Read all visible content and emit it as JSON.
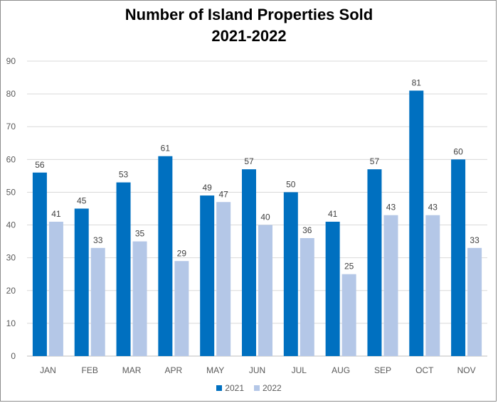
{
  "chart_data": {
    "type": "bar",
    "title": "Number of Island Properties Sold",
    "subtitle": "2021-2022",
    "categories": [
      "JAN",
      "FEB",
      "MAR",
      "APR",
      "MAY",
      "JUN",
      "JUL",
      "AUG",
      "SEP",
      "OCT",
      "NOV"
    ],
    "series": [
      {
        "name": "2021",
        "color": "#0070c0",
        "values": [
          56,
          45,
          53,
          61,
          49,
          57,
          50,
          41,
          57,
          81,
          60
        ]
      },
      {
        "name": "2022",
        "color": "#b4c7e7",
        "values": [
          41,
          33,
          35,
          29,
          47,
          40,
          36,
          25,
          43,
          43,
          33
        ]
      }
    ],
    "ylim": [
      0,
      90
    ],
    "yticks": [
      0,
      10,
      20,
      30,
      40,
      50,
      60,
      70,
      80,
      90
    ],
    "grid": true,
    "legend_position": "bottom",
    "data_labels": true
  }
}
